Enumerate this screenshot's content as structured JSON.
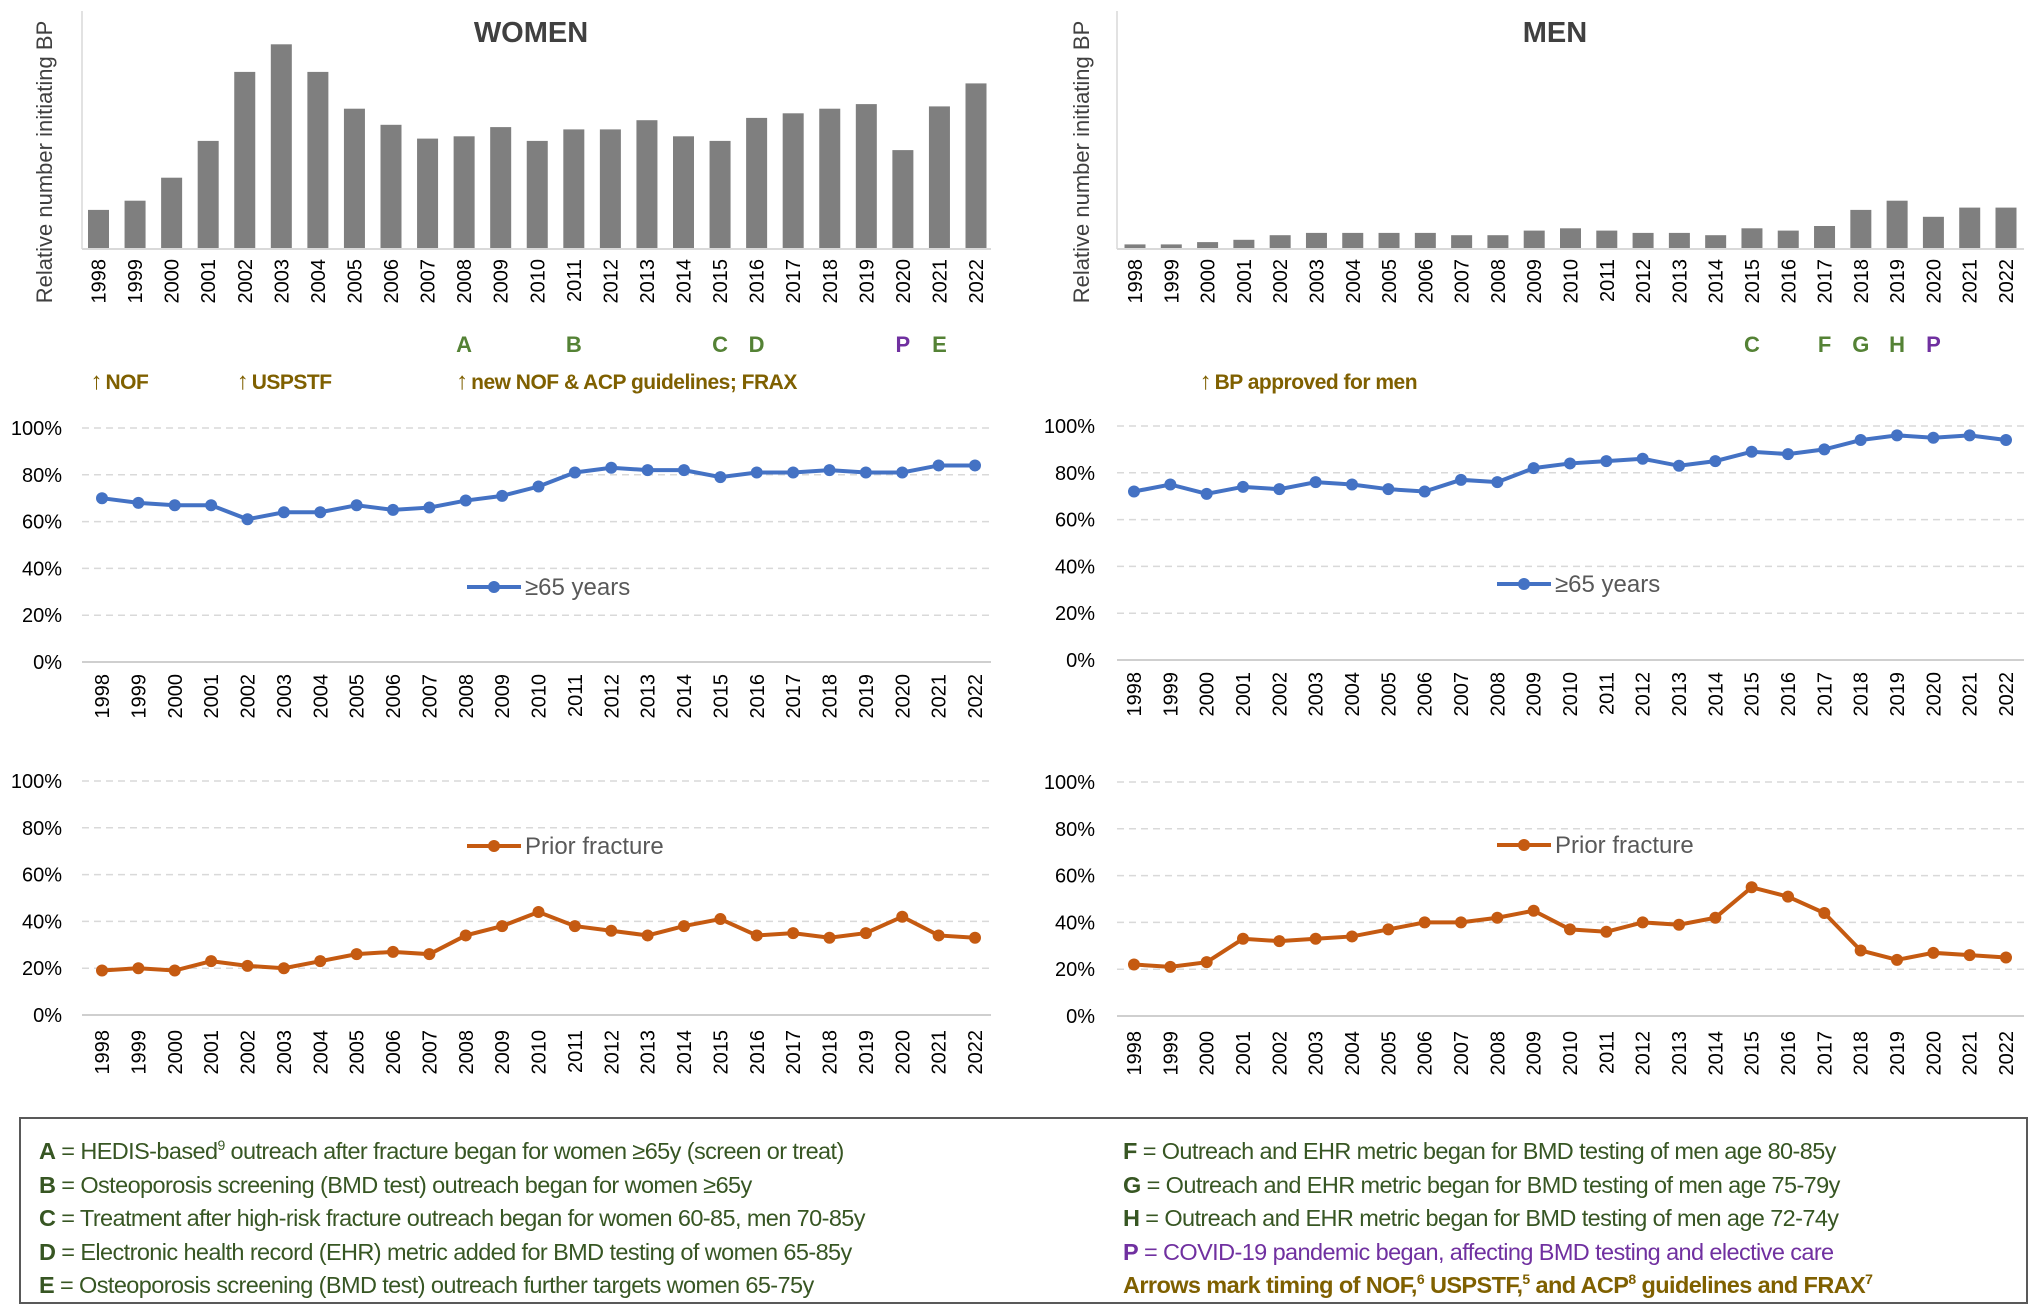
{
  "colors": {
    "bar": "#7f7f7f",
    "age65": "#4472c4",
    "fracture": "#c55a11",
    "green": "#548235",
    "darkgreen": "#375623",
    "purple": "#7030a0",
    "arrow": "#7f6000",
    "grid": "#d9d9d9",
    "axis": "#bfbfbf"
  },
  "chart_data": [
    {
      "id": "women-bar",
      "type": "bar",
      "title": "WOMEN",
      "ylabel": "Relative number initiating BP",
      "categories": [
        "1998",
        "1999",
        "2000",
        "2001",
        "2002",
        "2003",
        "2004",
        "2005",
        "2006",
        "2007",
        "2008",
        "2009",
        "2010",
        "2011",
        "2012",
        "2013",
        "2014",
        "2015",
        "2016",
        "2017",
        "2018",
        "2019",
        "2020",
        "2021",
        "2022"
      ],
      "values": [
        17,
        21,
        31,
        47,
        77,
        89,
        77,
        61,
        54,
        48,
        49,
        53,
        47,
        52,
        52,
        56,
        49,
        47,
        57,
        59,
        61,
        63,
        43,
        62,
        72
      ],
      "units": "relative (no y-axis scale shown)",
      "markers": [
        {
          "year": "2008",
          "label": "A",
          "color": "green"
        },
        {
          "year": "2011",
          "label": "B",
          "color": "green"
        },
        {
          "year": "2015",
          "label": "C",
          "color": "green"
        },
        {
          "year": "2016",
          "label": "D",
          "color": "green"
        },
        {
          "year": "2020",
          "label": "P",
          "color": "purple"
        },
        {
          "year": "2021",
          "label": "E",
          "color": "green"
        }
      ],
      "arrows": [
        {
          "year": "1998",
          "label": "NOF"
        },
        {
          "year": "2002",
          "label": "USPSTF"
        },
        {
          "year": "2008",
          "label": "new NOF & ACP guidelines; FRAX"
        }
      ]
    },
    {
      "id": "men-bar",
      "type": "bar",
      "title": "MEN",
      "ylabel": "Relative number initiating BP",
      "categories": [
        "1998",
        "1999",
        "2000",
        "2001",
        "2002",
        "2003",
        "2004",
        "2005",
        "2006",
        "2007",
        "2008",
        "2009",
        "2010",
        "2011",
        "2012",
        "2013",
        "2014",
        "2015",
        "2016",
        "2017",
        "2018",
        "2019",
        "2020",
        "2021",
        "2022"
      ],
      "values": [
        2,
        2,
        3,
        4,
        6,
        7,
        7,
        7,
        7,
        6,
        6,
        8,
        9,
        8,
        7,
        7,
        6,
        9,
        8,
        10,
        17,
        21,
        14,
        18,
        18
      ],
      "units": "relative (no y-axis scale shown)",
      "markers": [
        {
          "year": "2015",
          "label": "C",
          "color": "green"
        },
        {
          "year": "2017",
          "label": "F",
          "color": "green"
        },
        {
          "year": "2018",
          "label": "G",
          "color": "green"
        },
        {
          "year": "2019",
          "label": "H",
          "color": "green"
        },
        {
          "year": "2020",
          "label": "P",
          "color": "purple"
        }
      ],
      "arrows": [
        {
          "year": "2000",
          "label": "BP approved for men"
        }
      ]
    },
    {
      "id": "women-65",
      "type": "line",
      "ylim": [
        0,
        100
      ],
      "yticks": [
        "0%",
        "20%",
        "40%",
        "60%",
        "80%",
        "100%"
      ],
      "grid": true,
      "legend": "center",
      "categories": [
        "1998",
        "1999",
        "2000",
        "2001",
        "2002",
        "2003",
        "2004",
        "2005",
        "2006",
        "2007",
        "2008",
        "2009",
        "2010",
        "2011",
        "2012",
        "2013",
        "2014",
        "2015",
        "2016",
        "2017",
        "2018",
        "2019",
        "2020",
        "2021",
        "2022"
      ],
      "series": [
        {
          "name": "≥65 years",
          "color": "age65",
          "values": [
            70,
            68,
            67,
            67,
            61,
            64,
            64,
            67,
            65,
            66,
            69,
            71,
            75,
            81,
            83,
            82,
            82,
            79,
            81,
            81,
            82,
            81,
            81,
            84,
            84
          ]
        }
      ]
    },
    {
      "id": "men-65",
      "type": "line",
      "ylim": [
        0,
        100
      ],
      "yticks": [
        "0%",
        "20%",
        "40%",
        "60%",
        "80%",
        "100%"
      ],
      "grid": true,
      "legend": "center",
      "categories": [
        "1998",
        "1999",
        "2000",
        "2001",
        "2002",
        "2003",
        "2004",
        "2005",
        "2006",
        "2007",
        "2008",
        "2009",
        "2010",
        "2011",
        "2012",
        "2013",
        "2014",
        "2015",
        "2016",
        "2017",
        "2018",
        "2019",
        "2020",
        "2021",
        "2022"
      ],
      "series": [
        {
          "name": "≥65 years",
          "color": "age65",
          "values": [
            72,
            75,
            71,
            74,
            73,
            76,
            75,
            73,
            72,
            77,
            76,
            82,
            84,
            85,
            86,
            83,
            85,
            89,
            88,
            90,
            94,
            96,
            95,
            96,
            94
          ]
        }
      ]
    },
    {
      "id": "women-fracture",
      "type": "line",
      "ylim": [
        0,
        100
      ],
      "yticks": [
        "0%",
        "20%",
        "40%",
        "60%",
        "80%",
        "100%"
      ],
      "grid": true,
      "legend": "top-center",
      "categories": [
        "1998",
        "1999",
        "2000",
        "2001",
        "2002",
        "2003",
        "2004",
        "2005",
        "2006",
        "2007",
        "2008",
        "2009",
        "2010",
        "2011",
        "2012",
        "2013",
        "2014",
        "2015",
        "2016",
        "2017",
        "2018",
        "2019",
        "2020",
        "2021",
        "2022"
      ],
      "series": [
        {
          "name": "Prior fracture",
          "color": "fracture",
          "values": [
            19,
            20,
            19,
            23,
            21,
            20,
            23,
            26,
            27,
            26,
            34,
            38,
            44,
            38,
            36,
            34,
            38,
            41,
            34,
            35,
            33,
            35,
            42,
            34,
            33
          ]
        }
      ]
    },
    {
      "id": "men-fracture",
      "type": "line",
      "ylim": [
        0,
        100
      ],
      "yticks": [
        "0%",
        "20%",
        "40%",
        "60%",
        "80%",
        "100%"
      ],
      "grid": true,
      "legend": "top-center",
      "categories": [
        "1998",
        "1999",
        "2000",
        "2001",
        "2002",
        "2003",
        "2004",
        "2005",
        "2006",
        "2007",
        "2008",
        "2009",
        "2010",
        "2011",
        "2012",
        "2013",
        "2014",
        "2015",
        "2016",
        "2017",
        "2018",
        "2019",
        "2020",
        "2021",
        "2022"
      ],
      "series": [
        {
          "name": "Prior fracture",
          "color": "fracture",
          "values": [
            22,
            21,
            23,
            33,
            32,
            33,
            34,
            37,
            40,
            40,
            42,
            45,
            37,
            36,
            40,
            39,
            42,
            55,
            51,
            44,
            28,
            24,
            27,
            26,
            25
          ]
        }
      ]
    }
  ],
  "footnotes": {
    "left": [
      {
        "key": "A",
        "color": "darkgreen",
        "parts": [
          {
            "t": " = HEDIS-based"
          },
          {
            "t": "9",
            "sup": true
          },
          {
            "t": " outreach after fracture began for women ≥65y (screen or treat)"
          }
        ]
      },
      {
        "key": "B",
        "color": "darkgreen",
        "parts": [
          {
            "t": " = Osteoporosis screening (BMD test) outreach began for women ≥65y"
          }
        ]
      },
      {
        "key": "C",
        "color": "darkgreen",
        "parts": [
          {
            "t": " = Treatment after high-risk fracture outreach began for women 60-85, men 70-85y"
          }
        ]
      },
      {
        "key": "D",
        "color": "darkgreen",
        "parts": [
          {
            "t": " = Electronic health record (EHR) metric added for BMD testing of women 65-85y"
          }
        ]
      },
      {
        "key": "E",
        "color": "darkgreen",
        "parts": [
          {
            "t": " = Osteoporosis screening (BMD test) outreach further targets women 65-75y"
          }
        ]
      }
    ],
    "right": [
      {
        "key": "F",
        "color": "darkgreen",
        "parts": [
          {
            "t": " = Outreach and EHR metric began for BMD testing of men age 80-85y"
          }
        ]
      },
      {
        "key": "G",
        "color": "darkgreen",
        "parts": [
          {
            "t": " = Outreach and EHR metric began for BMD testing of men age 75-79y"
          }
        ]
      },
      {
        "key": "H",
        "color": "darkgreen",
        "parts": [
          {
            "t": " = Outreach and EHR metric began for BMD testing of men age 72-74y"
          }
        ]
      },
      {
        "key": "P",
        "color": "purple",
        "parts": [
          {
            "t": " = COVID-19 pandemic began, affecting BMD testing and elective care"
          }
        ]
      },
      {
        "key": "",
        "color": "arrow",
        "bold": true,
        "parts": [
          {
            "t": "Arrows mark timing of NOF,"
          },
          {
            "t": "6",
            "sup": true
          },
          {
            "t": " USPSTF,"
          },
          {
            "t": "5",
            "sup": true
          },
          {
            "t": " and ACP"
          },
          {
            "t": "8",
            "sup": true
          },
          {
            "t": " guidelines and FRAX"
          },
          {
            "t": "7",
            "sup": true
          }
        ]
      }
    ]
  }
}
